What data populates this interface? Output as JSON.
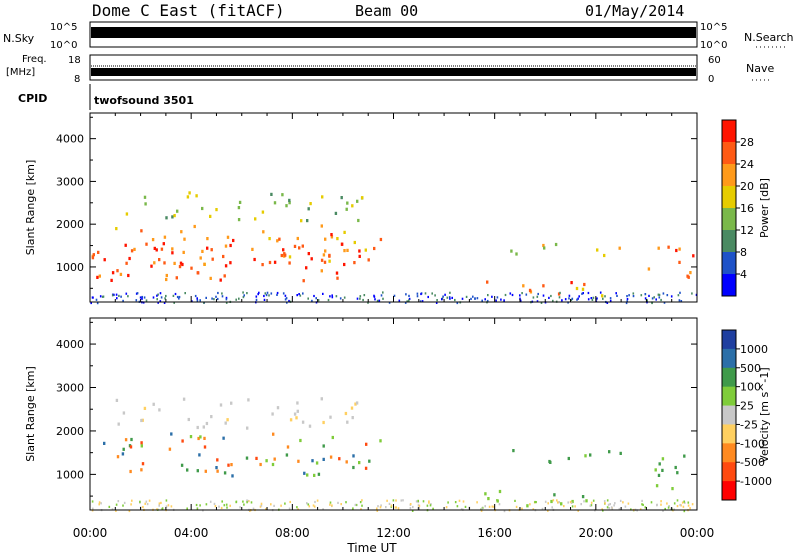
{
  "header": {
    "station": "Dome C East (fitACF)",
    "beam": "Beam 00",
    "date": "01/May/2014"
  },
  "panels_top": {
    "nsky_label": "N.Sky",
    "nsky_ticks": [
      "10^5",
      "10^0"
    ],
    "nsearch_label": "N.Search",
    "nsearch_ticks": [
      "10^5",
      "10^0"
    ],
    "freq_label_1": "Freq.",
    "freq_label_2": "[MHz]",
    "freq_ticks": [
      "18",
      "8"
    ],
    "nave_label": "Nave",
    "nave_ticks": [
      "60",
      "0"
    ],
    "cpid_label": "CPID",
    "cpid_text": "twofsound 3501"
  },
  "chart_data": [
    {
      "type": "heatmap",
      "title": "",
      "xlabel": "Time UT",
      "ylabel": "Slant Range [km]",
      "xticks": [
        "00:00",
        "04:00",
        "08:00",
        "12:00",
        "16:00",
        "20:00",
        "00:00"
      ],
      "xlim_hours": [
        0,
        24
      ],
      "ylim": [
        180,
        4600
      ],
      "yticks": [
        1000,
        2000,
        3000,
        4000
      ],
      "colorbar": {
        "label": "Power [dB]",
        "ticks": [
          4,
          8,
          12,
          16,
          20,
          24,
          28
        ],
        "range": [
          0,
          32
        ],
        "colors": [
          "#0000ff",
          "#1e52c8",
          "#4a8a62",
          "#7ab84a",
          "#e6cc00",
          "#ff9a1a",
          "#ff5a14",
          "#ff1400"
        ]
      },
      "scatter_regions": [
        {
          "t": [
            0.0,
            11.5
          ],
          "r": [
            1000,
            2000
          ],
          "level": 0.78
        },
        {
          "t": [
            1.0,
            10.8
          ],
          "r": [
            2100,
            2800
          ],
          "level": 0.45
        },
        {
          "t": [
            0.2,
            10.8
          ],
          "r": [
            700,
            1600
          ],
          "level": 0.9
        },
        {
          "t": [
            15.5,
            20.5
          ],
          "r": [
            300,
            700
          ],
          "level": 0.82
        },
        {
          "t": [
            16.5,
            21.0
          ],
          "r": [
            1300,
            1600
          ],
          "level": 0.55
        },
        {
          "t": [
            22.0,
            24.0
          ],
          "r": [
            700,
            1600
          ],
          "level": 0.85
        }
      ]
    },
    {
      "type": "heatmap",
      "title": "",
      "xlabel": "Time UT",
      "ylabel": "Slant Range [km]",
      "xticks": [
        "00:00",
        "04:00",
        "08:00",
        "12:00",
        "16:00",
        "20:00",
        "00:00"
      ],
      "xlim_hours": [
        0,
        24
      ],
      "ylim": [
        180,
        4600
      ],
      "yticks": [
        1000,
        2000,
        3000,
        4000
      ],
      "colorbar": {
        "label": "Velocity [m s^-1]",
        "ticks": [
          "1000",
          "500",
          "100",
          "25",
          "-25",
          "-100",
          "-500",
          "-1000"
        ],
        "colors": [
          "#1f3fa0",
          "#2b6fa8",
          "#3f9a4a",
          "#7fcc3a",
          "#c8c8c8",
          "#ffd060",
          "#ff8a20",
          "#ff4a10",
          "#ff0000"
        ]
      },
      "scatter_regions": [
        {
          "t": [
            0.0,
            11.5
          ],
          "r": [
            1000,
            2000
          ],
          "vel": "orange-green"
        },
        {
          "t": [
            1.0,
            10.8
          ],
          "r": [
            2100,
            2800
          ],
          "vel": "gray"
        },
        {
          "t": [
            15.5,
            20.5
          ],
          "r": [
            300,
            700
          ],
          "vel": "green"
        },
        {
          "t": [
            16.5,
            21.0
          ],
          "r": [
            1300,
            1600
          ],
          "vel": "green"
        },
        {
          "t": [
            22.0,
            24.0
          ],
          "r": [
            700,
            1600
          ],
          "vel": "green"
        }
      ]
    }
  ]
}
